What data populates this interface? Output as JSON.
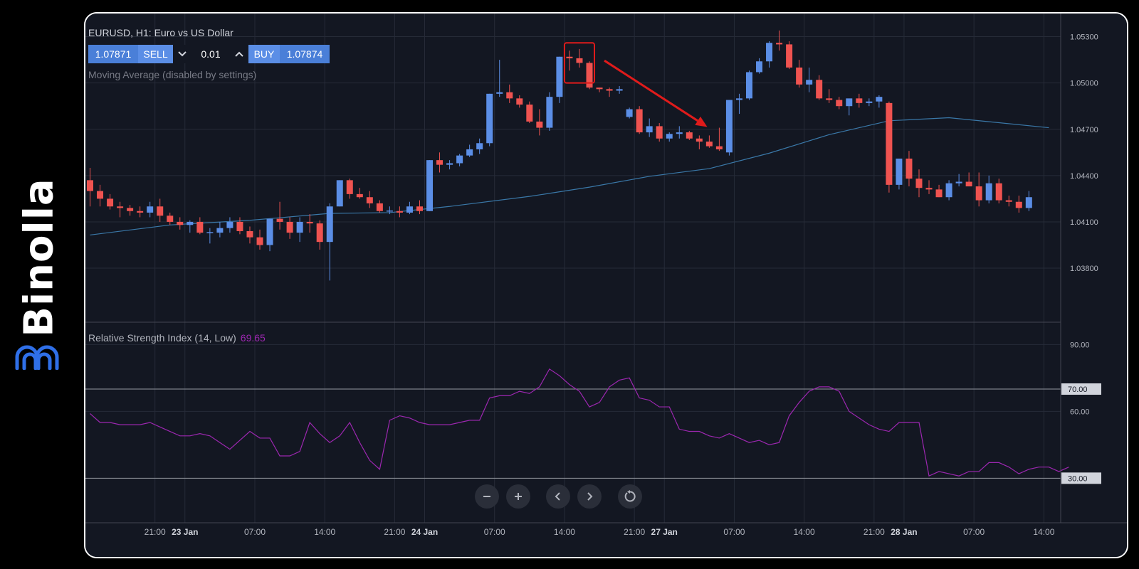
{
  "brand": {
    "name": "Binolla",
    "color": "#ffffff",
    "logo_color": "#2f6fe8"
  },
  "header": {
    "symbol_title": "EURUSD, H1: Euro vs US Dollar",
    "sell_price": "1.07871",
    "sell_label": "SELL",
    "lot_size": "0.01",
    "buy_label": "BUY",
    "buy_price": "1.07874",
    "decrease_icon": "chevron-down-icon",
    "increase_icon": "chevron-up-icon"
  },
  "indicators": {
    "moving_average_label": "Moving Average (disabled by settings)",
    "rsi_label": "Relative Strength Index (14, Low)",
    "rsi_value": "69.65"
  },
  "colors": {
    "background": "#131722",
    "grid": "#262b38",
    "bull": "#5b8ee6",
    "bear": "#ef5350",
    "moving_average": "#3a78a8",
    "rsi_line": "#9c27b0",
    "rsi_band": "#1e1a35",
    "annotation": "#e01b1b"
  },
  "toolbar": {
    "buttons": [
      {
        "name": "zoom-out-button",
        "icon": "minus-icon",
        "glyph": "−"
      },
      {
        "name": "zoom-in-button",
        "icon": "plus-icon",
        "glyph": "+"
      },
      {
        "name": "scroll-left-button",
        "icon": "chevron-left-icon",
        "glyph": "‹"
      },
      {
        "name": "scroll-right-button",
        "icon": "chevron-right-icon",
        "glyph": "›"
      },
      {
        "name": "reset-button",
        "icon": "reset-icon",
        "glyph": "↻"
      }
    ]
  },
  "chart_data": [
    {
      "type": "candlestick",
      "title": "EURUSD, H1: Euro vs US Dollar",
      "ylim": [
        1.0345,
        1.0545
      ],
      "y_ticks": [
        "1.05300",
        "1.05000",
        "1.04700",
        "1.04400",
        "1.04100",
        "1.03800"
      ],
      "x_ticks": [
        "21:00",
        "23 Jan",
        "07:00",
        "14:00",
        "21:00",
        "24 Jan",
        "07:00",
        "14:00",
        "21:00",
        "27 Jan",
        "07:00",
        "14:00",
        "21:00",
        "28 Jan",
        "07:00",
        "14:00"
      ],
      "x_tick_bars": [
        6.5,
        9.5,
        16.5,
        23.5,
        30.5,
        33.5,
        40.5,
        47.5,
        54.5,
        57.5,
        64.5,
        71.5,
        78.5,
        81.5,
        88.5,
        95.5
      ],
      "x_tick_bold": [
        false,
        true,
        false,
        false,
        false,
        true,
        false,
        false,
        false,
        true,
        false,
        false,
        false,
        true,
        false,
        false
      ],
      "candles": [
        [
          1.0437,
          1.0445,
          1.042,
          1.043
        ],
        [
          1.043,
          1.0434,
          1.042,
          1.0425
        ],
        [
          1.0425,
          1.0428,
          1.0418,
          1.042
        ],
        [
          1.042,
          1.0423,
          1.0413,
          1.0419
        ],
        [
          1.0419,
          1.0421,
          1.0414,
          1.0417
        ],
        [
          1.0417,
          1.042,
          1.0413,
          1.0416
        ],
        [
          1.0416,
          1.0423,
          1.0413,
          1.042
        ],
        [
          1.042,
          1.0425,
          1.041,
          1.0414
        ],
        [
          1.0414,
          1.0416,
          1.0408,
          1.041
        ],
        [
          1.041,
          1.0413,
          1.0405,
          1.0408
        ],
        [
          1.0408,
          1.0411,
          1.0403,
          1.041
        ],
        [
          1.041,
          1.0413,
          1.0402,
          1.0403
        ],
        [
          1.0403,
          1.0406,
          1.0396,
          1.0403
        ],
        [
          1.0403,
          1.041,
          1.04,
          1.0406
        ],
        [
          1.0406,
          1.0413,
          1.0403,
          1.041
        ],
        [
          1.041,
          1.0413,
          1.0402,
          1.0404
        ],
        [
          1.0404,
          1.0407,
          1.0396,
          1.04
        ],
        [
          1.04,
          1.0405,
          1.0392,
          1.0395
        ],
        [
          1.0395,
          1.0412,
          1.0391,
          1.0412
        ],
        [
          1.0412,
          1.0423,
          1.0405,
          1.041
        ],
        [
          1.041,
          1.0413,
          1.0399,
          1.0403
        ],
        [
          1.0403,
          1.0413,
          1.0397,
          1.041
        ],
        [
          1.041,
          1.0415,
          1.0403,
          1.0409
        ],
        [
          1.0409,
          1.0411,
          1.0392,
          1.0397
        ],
        [
          1.0397,
          1.0422,
          1.0372,
          1.042
        ],
        [
          1.042,
          1.0437,
          1.042,
          1.0437
        ],
        [
          1.0437,
          1.0438,
          1.0425,
          1.0428
        ],
        [
          1.0428,
          1.0432,
          1.0425,
          1.0426
        ],
        [
          1.0426,
          1.043,
          1.0419,
          1.0422
        ],
        [
          1.0422,
          1.0424,
          1.0416,
          1.0417
        ],
        [
          1.0417,
          1.042,
          1.0415,
          1.0417
        ],
        [
          1.0417,
          1.042,
          1.0413,
          1.0416
        ],
        [
          1.0416,
          1.0423,
          1.0415,
          1.042
        ],
        [
          1.042,
          1.0424,
          1.0415,
          1.0417
        ],
        [
          1.0417,
          1.045,
          1.0417,
          1.045
        ],
        [
          1.045,
          1.0455,
          1.0442,
          1.0447
        ],
        [
          1.0447,
          1.045,
          1.0444,
          1.0448
        ],
        [
          1.0448,
          1.0454,
          1.0446,
          1.0453
        ],
        [
          1.0453,
          1.046,
          1.0452,
          1.0457
        ],
        [
          1.0457,
          1.0464,
          1.0454,
          1.0461
        ],
        [
          1.0461,
          1.0493,
          1.0459,
          1.0493
        ],
        [
          1.0493,
          1.0515,
          1.0491,
          1.0494
        ],
        [
          1.0494,
          1.0499,
          1.0487,
          1.049
        ],
        [
          1.049,
          1.0492,
          1.0484,
          1.0486
        ],
        [
          1.0486,
          1.0488,
          1.0474,
          1.0475
        ],
        [
          1.0475,
          1.0483,
          1.0466,
          1.0471
        ],
        [
          1.0471,
          1.0494,
          1.0469,
          1.0491
        ],
        [
          1.0491,
          1.0517,
          1.0487,
          1.0517
        ],
        [
          1.0517,
          1.0521,
          1.0508,
          1.0516
        ],
        [
          1.0516,
          1.0522,
          1.051,
          1.0513
        ],
        [
          1.0513,
          1.0514,
          1.0496,
          1.0497
        ],
        [
          1.0497,
          1.0497,
          1.0494,
          1.0496
        ],
        [
          1.0496,
          1.0497,
          1.0491,
          1.0495
        ],
        [
          1.0495,
          1.0498,
          1.0493,
          1.0496
        ],
        [
          1.0478,
          1.0484,
          1.0477,
          1.0483
        ],
        [
          1.0483,
          1.0485,
          1.0467,
          1.0468
        ],
        [
          1.0468,
          1.0477,
          1.0465,
          1.0472
        ],
        [
          1.0472,
          1.0474,
          1.0462,
          1.0464
        ],
        [
          1.0464,
          1.0468,
          1.0462,
          1.0467
        ],
        [
          1.0467,
          1.0472,
          1.0464,
          1.0468
        ],
        [
          1.0468,
          1.0469,
          1.0463,
          1.0464
        ],
        [
          1.0464,
          1.0466,
          1.0457,
          1.0462
        ],
        [
          1.0462,
          1.0466,
          1.0458,
          1.0459
        ],
        [
          1.0459,
          1.0471,
          1.0456,
          1.0457
        ],
        [
          1.0455,
          1.0489,
          1.0453,
          1.0489
        ],
        [
          1.0489,
          1.0493,
          1.048,
          1.049
        ],
        [
          1.049,
          1.0508,
          1.0489,
          1.0507
        ],
        [
          1.0507,
          1.0516,
          1.0506,
          1.0514
        ],
        [
          1.0514,
          1.0527,
          1.051,
          1.0526
        ],
        [
          1.0526,
          1.0534,
          1.0521,
          1.0525
        ],
        [
          1.0525,
          1.0527,
          1.0509,
          1.051
        ],
        [
          1.051,
          1.0515,
          1.0497,
          1.0499
        ],
        [
          1.0499,
          1.051,
          1.0494,
          1.0502
        ],
        [
          1.0502,
          1.0505,
          1.0489,
          1.049
        ],
        [
          1.049,
          1.0496,
          1.0487,
          1.0489
        ],
        [
          1.0489,
          1.0491,
          1.0483,
          1.0485
        ],
        [
          1.0485,
          1.0489,
          1.0479,
          1.049
        ],
        [
          1.049,
          1.0493,
          1.0484,
          1.0487
        ],
        [
          1.0487,
          1.049,
          1.0485,
          1.0488
        ],
        [
          1.0488,
          1.0492,
          1.0484,
          1.0491
        ],
        [
          1.0487,
          1.0488,
          1.0429,
          1.0434
        ],
        [
          1.0434,
          1.0451,
          1.0431,
          1.0451
        ],
        [
          1.0451,
          1.0456,
          1.0433,
          1.0438
        ],
        [
          1.0438,
          1.0444,
          1.0426,
          1.0432
        ],
        [
          1.0432,
          1.0437,
          1.0428,
          1.0431
        ],
        [
          1.0431,
          1.0434,
          1.0426,
          1.0426
        ],
        [
          1.0426,
          1.0437,
          1.0424,
          1.0435
        ],
        [
          1.0435,
          1.0441,
          1.0433,
          1.0436
        ],
        [
          1.0436,
          1.0442,
          1.0433,
          1.0433
        ],
        [
          1.0433,
          1.0442,
          1.042,
          1.0424
        ],
        [
          1.0424,
          1.044,
          1.0422,
          1.0435
        ],
        [
          1.0435,
          1.0438,
          1.0422,
          1.0424
        ],
        [
          1.0424,
          1.0427,
          1.042,
          1.0423
        ],
        [
          1.0423,
          1.0427,
          1.0416,
          1.0419
        ],
        [
          1.0419,
          1.043,
          1.0417,
          1.0426
        ]
      ],
      "moving_average": [
        [
          0,
          1.04015
        ],
        [
          8,
          1.0408
        ],
        [
          16,
          1.0411
        ],
        [
          24,
          1.04155
        ],
        [
          30,
          1.0416
        ],
        [
          36,
          1.042
        ],
        [
          44,
          1.04265
        ],
        [
          50,
          1.04325
        ],
        [
          56,
          1.04395
        ],
        [
          62,
          1.04445
        ],
        [
          68,
          1.04545
        ],
        [
          74,
          1.04665
        ],
        [
          80,
          1.04755
        ],
        [
          86,
          1.04775
        ],
        [
          96,
          1.0471
        ]
      ],
      "annotations": [
        {
          "type": "box",
          "bars": [
            47.5,
            50.5
          ],
          "y": [
            1.05,
            1.0526
          ]
        },
        {
          "type": "arrow",
          "from": [
            51.5,
            1.05145
          ],
          "to": [
            61.8,
            1.04715
          ]
        }
      ]
    },
    {
      "type": "line",
      "title": "Relative Strength Index (14, Low)",
      "ylim": [
        10,
        100
      ],
      "y_ticks": [
        "90.00",
        "60.00"
      ],
      "levels": [
        {
          "value": 70,
          "label": "70.00"
        },
        {
          "value": 30,
          "label": "30.00"
        }
      ],
      "current_value": "69.65",
      "values": [
        59,
        55,
        55,
        54,
        54,
        54,
        55,
        53,
        51,
        49,
        49,
        50,
        49,
        46,
        43,
        47,
        51,
        48,
        48,
        40,
        40,
        42,
        55,
        50,
        46,
        49,
        55,
        46,
        38,
        34,
        56,
        58,
        57,
        55,
        54,
        54,
        54,
        55,
        56,
        56,
        66,
        67,
        67,
        69,
        68,
        71,
        79,
        76,
        72,
        69,
        62,
        64,
        71,
        74,
        75,
        66,
        65,
        62,
        62,
        52,
        51,
        51,
        49,
        48,
        50,
        48,
        46,
        47,
        45,
        46,
        58,
        64,
        69,
        71,
        71,
        69,
        60,
        57,
        54,
        52,
        51,
        55,
        55,
        55,
        31,
        33,
        32,
        31,
        33,
        33,
        37,
        37,
        35,
        32,
        34,
        35,
        35,
        33,
        35
      ]
    }
  ]
}
